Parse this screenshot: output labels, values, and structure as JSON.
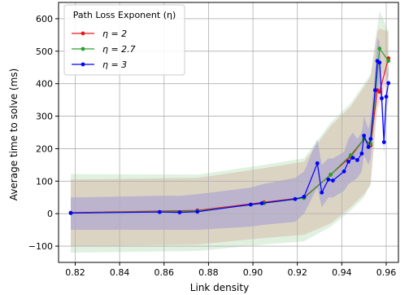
{
  "chart_data": {
    "type": "line",
    "title": "",
    "xlabel": "Link density",
    "ylabel": "Average time to solve (ms)",
    "xlim": [
      0.8125,
      0.9655
    ],
    "ylim": [
      -150,
      650
    ],
    "x_ticks": [
      0.82,
      0.84,
      0.86,
      0.88,
      0.9,
      0.92,
      0.94,
      0.96
    ],
    "x_tick_labels": [
      "0.82",
      "0.84",
      "0.86",
      "0.88",
      "0.90",
      "0.92",
      "0.94",
      "0.96"
    ],
    "y_ticks": [
      -100,
      0,
      100,
      200,
      300,
      400,
      500,
      600
    ],
    "y_tick_labels": [
      "−100",
      "0",
      "100",
      "200",
      "300",
      "400",
      "500",
      "600"
    ],
    "legend": {
      "title": "Path Loss Exponent (η)",
      "placement": "top-left"
    },
    "series": [
      {
        "name": "η = 2",
        "color": "#e41a1c",
        "band_opacity": 0.15,
        "x": [
          0.818,
          0.875,
          0.905,
          0.923,
          0.935,
          0.944,
          0.95,
          0.953,
          0.956,
          0.957,
          0.961
        ],
        "y": [
          3,
          10,
          35,
          50,
          120,
          175,
          230,
          210,
          380,
          375,
          478
        ],
        "lower": [
          -100,
          -95,
          -75,
          -65,
          -30,
          20,
          60,
          90,
          320,
          340,
          420
        ],
        "upper": [
          105,
          110,
          140,
          160,
          270,
          330,
          390,
          420,
          560,
          570,
          560
        ]
      },
      {
        "name": "η = 2.7",
        "color": "#2ca02c",
        "band_opacity": 0.15,
        "x": [
          0.818,
          0.875,
          0.905,
          0.923,
          0.935,
          0.944,
          0.95,
          0.953,
          0.957,
          0.961
        ],
        "y": [
          2,
          8,
          32,
          48,
          120,
          180,
          230,
          215,
          508,
          470
        ],
        "lower": [
          -120,
          -115,
          -95,
          -85,
          -40,
          10,
          50,
          90,
          440,
          420
        ],
        "upper": [
          122,
          120,
          150,
          170,
          280,
          340,
          400,
          430,
          625,
          560
        ]
      },
      {
        "name": "η = 3",
        "color": "#0000ff",
        "band_opacity": 0.15,
        "x": [
          0.818,
          0.858,
          0.867,
          0.875,
          0.899,
          0.904,
          0.919,
          0.923,
          0.929,
          0.931,
          0.934,
          0.936,
          0.941,
          0.943,
          0.945,
          0.947,
          0.949,
          0.95,
          0.952,
          0.953,
          0.955,
          0.956,
          0.957,
          0.958,
          0.959,
          0.96,
          0.961
        ],
        "y": [
          2,
          5,
          4,
          6,
          28,
          32,
          45,
          52,
          155,
          65,
          105,
          102,
          130,
          160,
          172,
          165,
          185,
          240,
          205,
          230,
          380,
          470,
          465,
          355,
          220,
          360,
          402
        ],
        "lower": [
          -50,
          -50,
          -50,
          -50,
          -40,
          -35,
          -25,
          0,
          80,
          20,
          50,
          50,
          70,
          90,
          100,
          110,
          130,
          180,
          150,
          170,
          320,
          390,
          380,
          300,
          180,
          310,
          350
        ],
        "upper": [
          50,
          55,
          55,
          60,
          80,
          90,
          110,
          130,
          230,
          150,
          170,
          170,
          190,
          230,
          250,
          230,
          250,
          300,
          260,
          290,
          440,
          540,
          530,
          420,
          280,
          410,
          460
        ]
      }
    ]
  }
}
